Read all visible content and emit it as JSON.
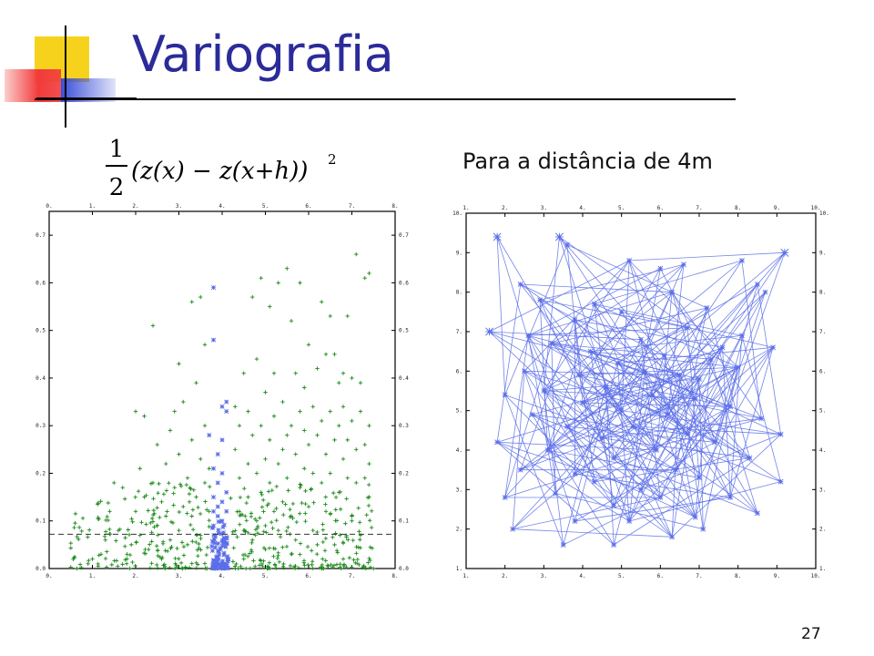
{
  "slide": {
    "title": "Variografia",
    "heading": "Para a distância de 4m",
    "page_number": "27",
    "formula": {
      "numerator": "1",
      "denominator": "2",
      "expression": "(z(x) − z(x+h))",
      "exponent": "2"
    }
  },
  "colors": {
    "title": "#2b2b9a",
    "green_points": "#1a8a1a",
    "blue_points": "#5b6ee8",
    "deco_yellow": "#f7d21c",
    "deco_red": "#f23b3b",
    "deco_blue": "#3b4fd8"
  },
  "chart_data": [
    {
      "type": "scatter",
      "title": "",
      "xlabel": "",
      "ylabel": "",
      "xlim": [
        0,
        8
      ],
      "ylim": [
        0,
        0.75
      ],
      "x_ticks": [
        "0.",
        "1.",
        "2.",
        "3.",
        "4.",
        "5.",
        "6.",
        "7.",
        "8."
      ],
      "y_ticks": [
        "0.0",
        "0.1",
        "0.2",
        "0.3",
        "0.4",
        "0.5",
        "0.6",
        "0.7"
      ],
      "reference_line": {
        "y": 0.072,
        "style": "dashed"
      },
      "series": [
        {
          "marker": "+",
          "color": "green",
          "points": [
            [
              0.5,
              0.003
            ],
            [
              0.9,
              0.01
            ],
            [
              1.0,
              0.02
            ],
            [
              1.2,
              0.03
            ],
            [
              1.3,
              0.06
            ],
            [
              1.4,
              0.12
            ],
            [
              1.5,
              0.18
            ],
            [
              1.6,
              0.08
            ],
            [
              1.7,
              0.17
            ],
            [
              1.8,
              0.03
            ],
            [
              1.9,
              0.05
            ],
            [
              2.0,
              0.12
            ],
            [
              2.0,
              0.33
            ],
            [
              2.1,
              0.07
            ],
            [
              2.1,
              0.21
            ],
            [
              2.2,
              0.15
            ],
            [
              2.2,
              0.32
            ],
            [
              2.3,
              0.04
            ],
            [
              2.4,
              0.18
            ],
            [
              2.4,
              0.51
            ],
            [
              2.5,
              0.09
            ],
            [
              2.5,
              0.26
            ],
            [
              2.6,
              0.14
            ],
            [
              2.6,
              0.02
            ],
            [
              2.7,
              0.22
            ],
            [
              2.7,
              0.11
            ],
            [
              2.8,
              0.06
            ],
            [
              2.8,
              0.29
            ],
            [
              2.9,
              0.17
            ],
            [
              2.9,
              0.33
            ],
            [
              3.0,
              0.43
            ],
            [
              3.0,
              0.24
            ],
            [
              3.0,
              0.08
            ],
            [
              3.1,
              0.13
            ],
            [
              3.1,
              0.35
            ],
            [
              3.2,
              0.19
            ],
            [
              3.2,
              0.05
            ],
            [
              3.3,
              0.27
            ],
            [
              3.3,
              0.56
            ],
            [
              3.3,
              0.11
            ],
            [
              3.4,
              0.15
            ],
            [
              3.4,
              0.39
            ],
            [
              3.5,
              0.23
            ],
            [
              3.5,
              0.57
            ],
            [
              3.5,
              0.07
            ],
            [
              3.6,
              0.18
            ],
            [
              3.6,
              0.47
            ],
            [
              3.6,
              0.3
            ],
            [
              3.7,
              0.12
            ],
            [
              3.7,
              0.21
            ],
            [
              4.3,
              0.25
            ],
            [
              4.3,
              0.34
            ],
            [
              4.4,
              0.12
            ],
            [
              4.4,
              0.19
            ],
            [
              4.4,
              0.3
            ],
            [
              4.5,
              0.08
            ],
            [
              4.5,
              0.41
            ],
            [
              4.6,
              0.22
            ],
            [
              4.6,
              0.33
            ],
            [
              4.6,
              0.15
            ],
            [
              4.7,
              0.57
            ],
            [
              4.7,
              0.28
            ],
            [
              4.7,
              0.06
            ],
            [
              4.8,
              0.44
            ],
            [
              4.8,
              0.2
            ],
            [
              4.8,
              0.1
            ],
            [
              4.9,
              0.61
            ],
            [
              4.9,
              0.3
            ],
            [
              4.9,
              0.16
            ],
            [
              5.0,
              0.37
            ],
            [
              5.0,
              0.23
            ],
            [
              5.0,
              0.04
            ],
            [
              5.1,
              0.55
            ],
            [
              5.1,
              0.18
            ],
            [
              5.1,
              0.27
            ],
            [
              5.2,
              0.41
            ],
            [
              5.2,
              0.12
            ],
            [
              5.2,
              0.32
            ],
            [
              5.3,
              0.6
            ],
            [
              5.3,
              0.22
            ],
            [
              5.3,
              0.08
            ],
            [
              5.4,
              0.25
            ],
            [
              5.4,
              0.14
            ],
            [
              5.4,
              0.35
            ],
            [
              5.5,
              0.63
            ],
            [
              5.5,
              0.28
            ],
            [
              5.5,
              0.19
            ],
            [
              5.6,
              0.52
            ],
            [
              5.6,
              0.11
            ],
            [
              5.6,
              0.3
            ],
            [
              5.7,
              0.41
            ],
            [
              5.7,
              0.24
            ],
            [
              5.7,
              0.06
            ],
            [
              5.8,
              0.6
            ],
            [
              5.8,
              0.33
            ],
            [
              5.8,
              0.17
            ],
            [
              5.9,
              0.38
            ],
            [
              5.9,
              0.21
            ],
            [
              5.9,
              0.29
            ],
            [
              6.0,
              0.47
            ],
            [
              6.0,
              0.13
            ],
            [
              6.0,
              0.26
            ],
            [
              6.1,
              0.34
            ],
            [
              6.1,
              0.2
            ],
            [
              6.1,
              0.08
            ],
            [
              6.2,
              0.42
            ],
            [
              6.2,
              0.28
            ],
            [
              6.3,
              0.56
            ],
            [
              6.3,
              0.18
            ],
            [
              6.3,
              0.31
            ],
            [
              6.4,
              0.45
            ],
            [
              6.4,
              0.24
            ],
            [
              6.4,
              0.12
            ],
            [
              6.5,
              0.53
            ],
            [
              6.5,
              0.33
            ],
            [
              6.5,
              0.2
            ],
            [
              6.6,
              0.45
            ],
            [
              6.6,
              0.27
            ],
            [
              6.6,
              0.05
            ],
            [
              6.7,
              0.39
            ],
            [
              6.7,
              0.16
            ],
            [
              6.7,
              0.3
            ],
            [
              6.8,
              0.41
            ],
            [
              6.8,
              0.23
            ],
            [
              6.8,
              0.34
            ],
            [
              6.9,
              0.53
            ],
            [
              6.9,
              0.19
            ],
            [
              6.9,
              0.27
            ],
            [
              7.0,
              0.4
            ],
            [
              7.0,
              0.11
            ],
            [
              7.0,
              0.31
            ],
            [
              7.1,
              0.66
            ],
            [
              7.1,
              0.25
            ],
            [
              7.1,
              0.18
            ],
            [
              7.2,
              0.39
            ],
            [
              7.2,
              0.33
            ],
            [
              7.2,
              0.07
            ],
            [
              7.3,
              0.61
            ],
            [
              7.3,
              0.26
            ],
            [
              7.3,
              0.19
            ],
            [
              7.4,
              0.62
            ],
            [
              7.4,
              0.22
            ],
            [
              7.4,
              0.15
            ],
            [
              7.4,
              0.3
            ],
            [
              7.0,
              0.1
            ],
            [
              6.8,
              0.02
            ],
            [
              6.2,
              0.05
            ],
            [
              5.6,
              0.03
            ],
            [
              5.0,
              0.09
            ],
            [
              4.5,
              0.02
            ]
          ],
          "dense_fill": {
            "x_range": [
              0.5,
              7.5
            ],
            "y_max": 0.18,
            "count": 420
          }
        },
        {
          "marker": "x",
          "color": "blue",
          "points": [
            [
              3.8,
              0.59
            ],
            [
              3.8,
              0.48
            ],
            [
              4.0,
              0.34
            ],
            [
              4.1,
              0.33
            ],
            [
              4.1,
              0.35
            ],
            [
              3.7,
              0.28
            ],
            [
              4.0,
              0.27
            ],
            [
              3.9,
              0.24
            ],
            [
              3.8,
              0.21
            ],
            [
              4.0,
              0.2
            ],
            [
              3.9,
              0.18
            ],
            [
              4.1,
              0.16
            ],
            [
              3.8,
              0.15
            ],
            [
              4.0,
              0.14
            ],
            [
              3.9,
              0.13
            ],
            [
              3.8,
              0.12
            ],
            [
              4.1,
              0.12
            ],
            [
              3.9,
              0.11
            ],
            [
              4.0,
              0.1
            ],
            [
              3.8,
              0.09
            ]
          ],
          "dense_fill": {
            "x_range": [
              3.75,
              4.15
            ],
            "y_max": 0.1,
            "count": 90
          }
        }
      ]
    },
    {
      "type": "scatter",
      "title": "",
      "xlabel": "",
      "ylabel": "",
      "xlim": [
        1,
        10
      ],
      "ylim": [
        1,
        10
      ],
      "x_ticks": [
        "1.",
        "2.",
        "3.",
        "4.",
        "5.",
        "6.",
        "7.",
        "8.",
        "9.",
        "10."
      ],
      "y_ticks": [
        "1.",
        "2.",
        "3.",
        "4.",
        "5.",
        "6.",
        "7.",
        "8.",
        "9.",
        "10."
      ],
      "points": [
        [
          1.8,
          9.4
        ],
        [
          3.4,
          9.4
        ],
        [
          3.6,
          9.2
        ],
        [
          9.2,
          9.0
        ],
        [
          5.2,
          8.8
        ],
        [
          6.6,
          8.7
        ],
        [
          8.1,
          8.8
        ],
        [
          6.0,
          8.6
        ],
        [
          2.4,
          8.2
        ],
        [
          8.5,
          8.2
        ],
        [
          8.7,
          8.0
        ],
        [
          6.3,
          8.0
        ],
        [
          2.9,
          7.8
        ],
        [
          4.3,
          7.7
        ],
        [
          7.2,
          7.6
        ],
        [
          5.0,
          7.5
        ],
        [
          3.8,
          7.3
        ],
        [
          1.6,
          7.0
        ],
        [
          6.7,
          7.1
        ],
        [
          2.6,
          6.9
        ],
        [
          5.5,
          6.8
        ],
        [
          8.1,
          6.9
        ],
        [
          3.2,
          6.7
        ],
        [
          7.6,
          6.6
        ],
        [
          8.9,
          6.6
        ],
        [
          4.2,
          6.5
        ],
        [
          6.1,
          6.4
        ],
        [
          4.9,
          6.2
        ],
        [
          7.3,
          6.3
        ],
        [
          2.5,
          6.0
        ],
        [
          3.9,
          5.9
        ],
        [
          5.6,
          6.0
        ],
        [
          6.5,
          5.9
        ],
        [
          8.0,
          6.1
        ],
        [
          7.0,
          5.8
        ],
        [
          4.6,
          5.6
        ],
        [
          2.0,
          5.4
        ],
        [
          3.0,
          5.5
        ],
        [
          5.8,
          5.4
        ],
        [
          6.9,
          5.3
        ],
        [
          4.0,
          5.2
        ],
        [
          5.0,
          5.0
        ],
        [
          7.8,
          5.1
        ],
        [
          2.7,
          4.9
        ],
        [
          6.2,
          4.9
        ],
        [
          8.6,
          4.8
        ],
        [
          3.6,
          4.6
        ],
        [
          5.3,
          4.6
        ],
        [
          9.1,
          4.4
        ],
        [
          4.5,
          4.3
        ],
        [
          6.7,
          4.4
        ],
        [
          1.8,
          4.2
        ],
        [
          7.4,
          4.2
        ],
        [
          3.1,
          4.0
        ],
        [
          5.9,
          4.0
        ],
        [
          4.8,
          3.8
        ],
        [
          8.3,
          3.8
        ],
        [
          2.4,
          3.5
        ],
        [
          3.8,
          3.4
        ],
        [
          6.4,
          3.5
        ],
        [
          7.0,
          3.3
        ],
        [
          9.1,
          3.2
        ],
        [
          4.3,
          3.2
        ],
        [
          5.5,
          3.0
        ],
        [
          2.0,
          2.8
        ],
        [
          3.3,
          2.9
        ],
        [
          6.0,
          2.8
        ],
        [
          7.8,
          2.8
        ],
        [
          4.8,
          2.6
        ],
        [
          8.5,
          2.4
        ],
        [
          6.9,
          2.3
        ],
        [
          2.2,
          2.0
        ],
        [
          3.8,
          2.2
        ],
        [
          5.2,
          2.2
        ],
        [
          7.1,
          2.0
        ],
        [
          6.3,
          1.8
        ],
        [
          3.5,
          1.6
        ],
        [
          4.8,
          1.6
        ]
      ],
      "highlighted": [
        [
          1.8,
          9.4
        ],
        [
          3.4,
          9.4
        ],
        [
          9.2,
          9.0
        ],
        [
          1.6,
          7.0
        ]
      ]
    }
  ]
}
